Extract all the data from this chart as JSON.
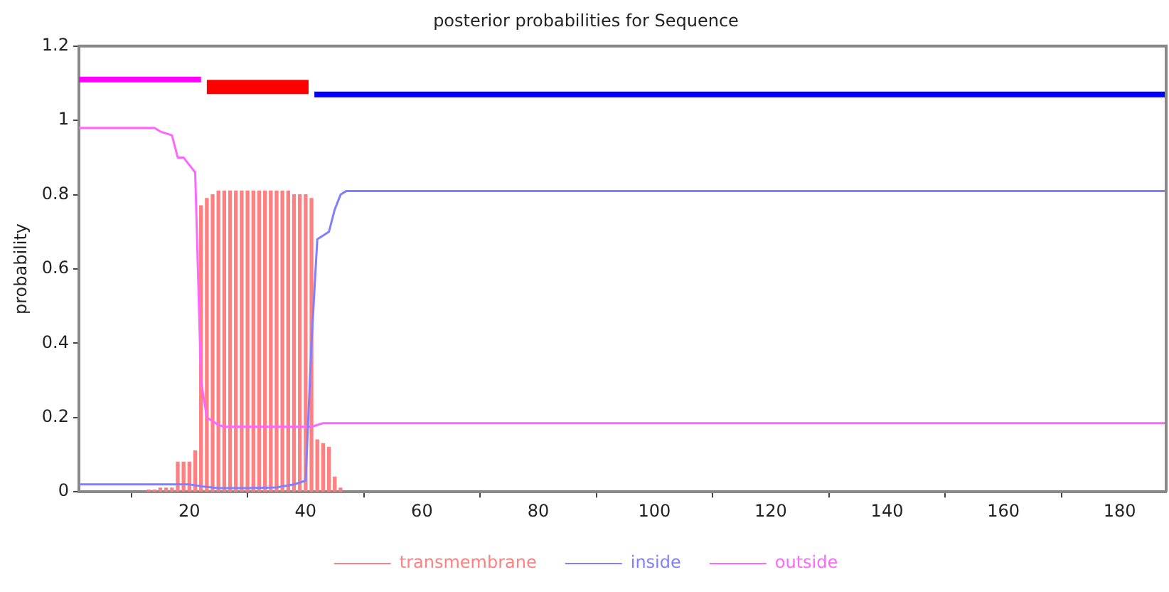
{
  "chart_data": {
    "type": "line",
    "title": "posterior probabilities for Sequence",
    "ylabel": "probability",
    "xlim": [
      1,
      188
    ],
    "ylim": [
      0,
      1.2
    ],
    "xticks": [
      20,
      40,
      60,
      80,
      100,
      120,
      140,
      160,
      180
    ],
    "yticks": [
      0,
      0.2,
      0.4,
      0.6,
      0.8,
      1,
      1.2
    ],
    "grid": false,
    "legend": "bottom",
    "marker": "none",
    "series": [
      {
        "name": "transmembrane",
        "type": "bar",
        "color": "#ff8080",
        "x": [
          13,
          14,
          15,
          16,
          17,
          18,
          19,
          20,
          21,
          22,
          23,
          24,
          25,
          26,
          27,
          28,
          29,
          30,
          31,
          32,
          33,
          34,
          35,
          36,
          37,
          38,
          39,
          40,
          41,
          42,
          43,
          44,
          45,
          46
        ],
        "values": [
          0.005,
          0.005,
          0.01,
          0.01,
          0.01,
          0.08,
          0.08,
          0.08,
          0.11,
          0.77,
          0.79,
          0.8,
          0.81,
          0.81,
          0.81,
          0.81,
          0.81,
          0.81,
          0.81,
          0.81,
          0.81,
          0.81,
          0.81,
          0.81,
          0.81,
          0.8,
          0.8,
          0.8,
          0.79,
          0.14,
          0.13,
          0.12,
          0.04,
          0.01
        ]
      },
      {
        "name": "inside",
        "color": "#7f7fff",
        "x": [
          1,
          18,
          20,
          22,
          25,
          30,
          35,
          38,
          40,
          41,
          42,
          43,
          44,
          45,
          46,
          47,
          188
        ],
        "values": [
          0.02,
          0.02,
          0.02,
          0.015,
          0.01,
          0.01,
          0.012,
          0.02,
          0.03,
          0.4,
          0.68,
          0.69,
          0.7,
          0.76,
          0.8,
          0.81,
          0.81
        ]
      },
      {
        "name": "outside",
        "color": "#ff66ff",
        "x": [
          1,
          14,
          15,
          17,
          18,
          19,
          20,
          21,
          22,
          23,
          24,
          25,
          26,
          41,
          42,
          43,
          188
        ],
        "values": [
          0.98,
          0.98,
          0.97,
          0.96,
          0.9,
          0.9,
          0.88,
          0.86,
          0.3,
          0.2,
          0.19,
          0.18,
          0.175,
          0.175,
          0.18,
          0.185,
          0.185
        ]
      },
      {
        "color": "#ff00ff",
        "x": [
          1,
          22
        ],
        "values": [
          1.11,
          1.11
        ]
      },
      {
        "color": "#ff0000",
        "x": [
          23,
          40.5
        ],
        "values": [
          1.09,
          1.09
        ]
      },
      {
        "color": "#0000ff",
        "x": [
          41.5,
          188
        ],
        "values": [
          1.07,
          1.07
        ]
      }
    ]
  }
}
